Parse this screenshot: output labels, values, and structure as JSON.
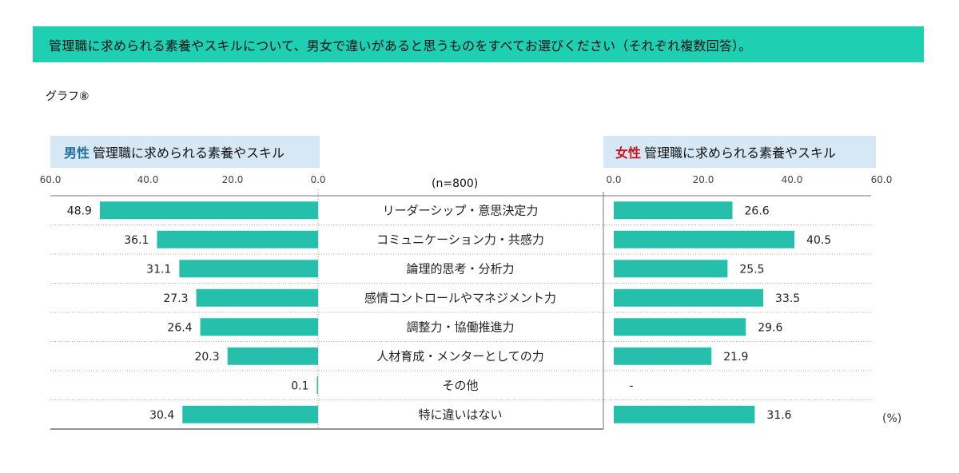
{
  "title": "管理職に求められる素養やスキルについて、男女で違いがあると思うものをすべてお選びください（それぞれ複数回答）。",
  "graph_label": "グラフ⑧",
  "n_label": "(n=800)",
  "unit_label": "(%)",
  "colors": {
    "bar": "#26bfac",
    "header_bg": "#d6e8f5",
    "title_bg": "#1fcfb1",
    "male_accent": "#1f6f9a",
    "female_accent": "#c4141c"
  },
  "chart_data": {
    "type": "bar",
    "orientation": "horizontal-butterfly",
    "categories": [
      "リーダーシップ・意思決定力",
      "コミュニケーション力・共感力",
      "論理的思考・分析力",
      "感情コントロールやマネジメント力",
      "調整力・協働推進力",
      "人材育成・メンターとしての力",
      "その他",
      "特に違いはない"
    ],
    "series": [
      {
        "name_prefix": "男性",
        "name_suffix": "管理職に求められる素養やスキル",
        "values": [
          48.9,
          36.1,
          31.1,
          27.3,
          26.4,
          20.3,
          0.1,
          30.4
        ],
        "labels": [
          "48.9",
          "36.1",
          "31.1",
          "27.3",
          "26.4",
          "20.3",
          "0.1",
          "30.4"
        ]
      },
      {
        "name_prefix": "女性",
        "name_suffix": "管理職に求められる素養やスキル",
        "values": [
          26.6,
          40.5,
          25.5,
          33.5,
          29.6,
          21.9,
          null,
          31.6
        ],
        "labels": [
          "26.6",
          "40.5",
          "25.5",
          "33.5",
          "29.6",
          "21.9",
          "-",
          "31.6"
        ]
      }
    ],
    "male_ticks": [
      "60.0",
      "40.0",
      "20.0",
      "0.0"
    ],
    "female_ticks": [
      "0.0",
      "20.0",
      "40.0",
      "60.0"
    ],
    "xlim": [
      0,
      60
    ]
  }
}
